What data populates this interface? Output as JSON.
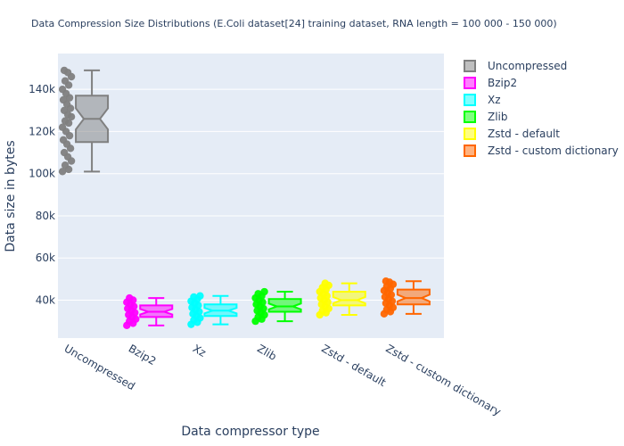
{
  "chart_data": {
    "type": "box",
    "title": "Data Compression Size Distributions (E.Coli dataset[24] training dataset, RNA length = 100 000 - 150 000)",
    "xlabel": "Data compressor type",
    "ylabel": "Data size in bytes",
    "categories": [
      "Uncompressed",
      "Bzip2",
      "Xz",
      "Zlib",
      "Zstd - default",
      "Zstd - custom dictionary"
    ],
    "ylim": [
      22000,
      157000
    ],
    "yticks": [
      40000,
      60000,
      80000,
      100000,
      120000,
      140000
    ],
    "ytick_labels": [
      "40k",
      "60k",
      "80k",
      "100k",
      "120k",
      "140k"
    ],
    "grid": true,
    "legend": "top-right",
    "series": [
      {
        "name": "Uncompressed",
        "color": "#808080",
        "min": 101000,
        "q1": 115000,
        "median": 126000,
        "q3": 137000,
        "max": 149000,
        "notch": [
          121000,
          131000
        ],
        "points": [
          101000,
          102000,
          104000,
          106000,
          108000,
          110000,
          112000,
          114000,
          116000,
          118000,
          120000,
          122000,
          124000,
          125000,
          127000,
          128000,
          130000,
          131000,
          133000,
          135000,
          136000,
          138000,
          140000,
          142000,
          144000,
          146000,
          148000,
          149000
        ]
      },
      {
        "name": "Bzip2",
        "color": "#ff00ff",
        "min": 28000,
        "q1": 32000,
        "median": 34500,
        "q3": 37500,
        "max": 41000,
        "notch": [
          33200,
          35800
        ],
        "points": [
          28000,
          29000,
          30000,
          31000,
          32000,
          33000,
          34000,
          35000,
          36000,
          37000,
          38000,
          39000,
          40000,
          41000
        ]
      },
      {
        "name": "Xz",
        "color": "#00ffff",
        "min": 28500,
        "q1": 32500,
        "median": 35000,
        "q3": 38000,
        "max": 42000,
        "notch": [
          33700,
          36300
        ],
        "points": [
          28500,
          29500,
          30500,
          31500,
          32500,
          33500,
          34500,
          35500,
          36500,
          37500,
          38500,
          39500,
          40500,
          41500,
          42000
        ]
      },
      {
        "name": "Zlib",
        "color": "#00ff00",
        "min": 30000,
        "q1": 34500,
        "median": 37000,
        "q3": 40500,
        "max": 44000,
        "notch": [
          35600,
          38400
        ],
        "points": [
          30000,
          31000,
          32000,
          33000,
          34000,
          35000,
          36000,
          37000,
          38000,
          39000,
          40000,
          41000,
          42000,
          43000,
          44000
        ]
      },
      {
        "name": "Zstd - default",
        "color": "#ffff00",
        "min": 33000,
        "q1": 37500,
        "median": 40000,
        "q3": 44000,
        "max": 48000,
        "notch": [
          38500,
          41500
        ],
        "points": [
          33000,
          34000,
          35000,
          36000,
          37000,
          38000,
          39000,
          40000,
          41000,
          42000,
          43000,
          44000,
          45000,
          46000,
          47000,
          48000
        ]
      },
      {
        "name": "Zstd - custom dictionary",
        "color": "#ff6600",
        "min": 33500,
        "q1": 38000,
        "median": 41000,
        "q3": 45000,
        "max": 49000,
        "notch": [
          39400,
          42600
        ],
        "points": [
          33500,
          34500,
          35500,
          36500,
          37500,
          38500,
          39500,
          40500,
          41500,
          42500,
          43500,
          44500,
          45500,
          46500,
          47500,
          48500,
          49000
        ]
      }
    ]
  }
}
